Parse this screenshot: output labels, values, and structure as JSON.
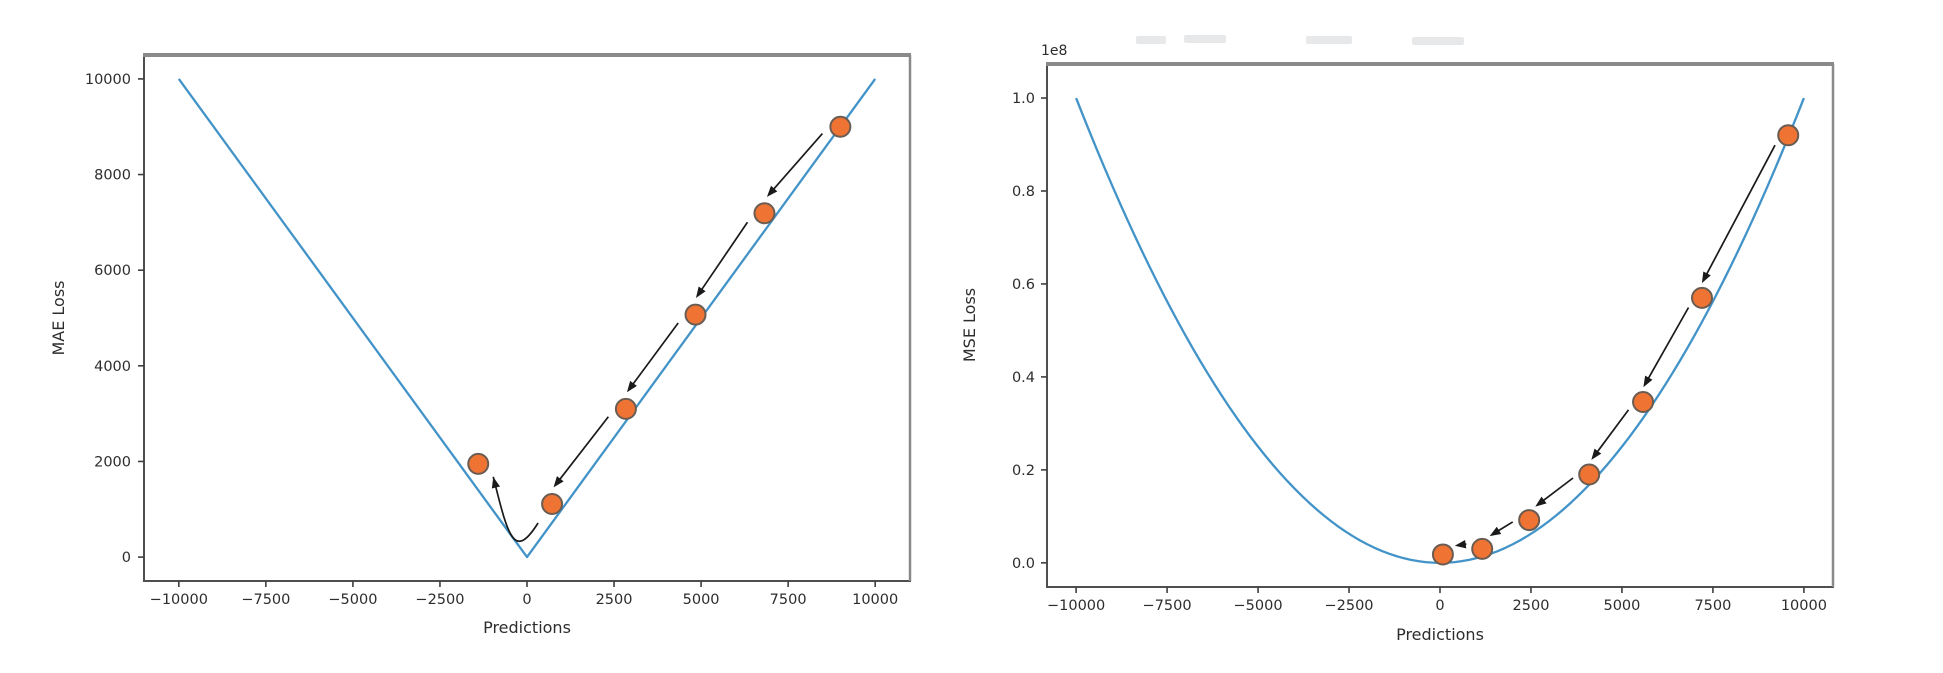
{
  "page": {
    "background": "#ffffff",
    "description": "Two loss-function plots comparing gradient descent trajectories"
  },
  "chart_data": [
    {
      "type": "line",
      "title": "",
      "xlabel": "Predictions",
      "ylabel": "MAE Loss",
      "curve_formula": "y = |x|",
      "curve_kind": "abs",
      "curve_x_range": [
        -10000,
        10000
      ],
      "xlim": [
        -11000,
        11000
      ],
      "ylim": [
        -500,
        10500
      ],
      "x_ticks": [
        -10000,
        -7500,
        -5000,
        -2500,
        0,
        2500,
        5000,
        7500,
        10000
      ],
      "x_tick_labels": [
        "−10000",
        "−7500",
        "−5000",
        "−2500",
        "0",
        "2500",
        "5000",
        "7500",
        "10000"
      ],
      "y_ticks": [
        0,
        2000,
        4000,
        6000,
        8000,
        10000
      ],
      "y_tick_labels": [
        "0",
        "2000",
        "4000",
        "6000",
        "8000",
        "10000"
      ],
      "grid": false,
      "legend": false,
      "colors": {
        "curve": "#4293c8",
        "marker_fill": "#ef7434",
        "marker_edge": "#6a5c52",
        "arrow": "#1a1a1a"
      },
      "gradient_descent_points": [
        [
          9000,
          9000
        ],
        [
          6820,
          7190
        ],
        [
          4840,
          5070
        ],
        [
          2840,
          3100
        ],
        [
          720,
          1110
        ],
        [
          -1400,
          1950
        ]
      ],
      "arrows": [
        {
          "from": 0,
          "to": 1,
          "style": "straight"
        },
        {
          "from": 1,
          "to": 2,
          "style": "straight"
        },
        {
          "from": 2,
          "to": 3,
          "style": "straight"
        },
        {
          "from": 3,
          "to": 4,
          "style": "straight"
        },
        {
          "from": 4,
          "to": 5,
          "style": "curved"
        }
      ]
    },
    {
      "type": "line",
      "title": "",
      "xlabel": "Predictions",
      "ylabel": "MSE Loss",
      "y_offset_label": "1e8",
      "curve_formula": "y = x^2",
      "curve_kind": "square",
      "curve_x_range": [
        -10000,
        10000
      ],
      "xlim": [
        -10800,
        10800
      ],
      "ylim": [
        -5200000,
        107320000
      ],
      "x_ticks": [
        -10000,
        -7500,
        -5000,
        -2500,
        0,
        2500,
        5000,
        7500,
        10000
      ],
      "x_tick_labels": [
        "−10000",
        "−7500",
        "−5000",
        "−2500",
        "0",
        "2500",
        "5000",
        "7500",
        "10000"
      ],
      "y_ticks": [
        0,
        20000000,
        40000000,
        60000000,
        80000000,
        100000000
      ],
      "y_tick_labels": [
        "0.0",
        "0.2",
        "0.4",
        "0.6",
        "0.8",
        "1.0"
      ],
      "grid": false,
      "legend": false,
      "colors": {
        "curve": "#4293c8",
        "marker_fill": "#ef7434",
        "marker_edge": "#6a5c52",
        "arrow": "#1a1a1a"
      },
      "gradient_descent_points": [
        [
          9570,
          92000000
        ],
        [
          7200,
          57000000
        ],
        [
          5580,
          34600000
        ],
        [
          4100,
          19000000
        ],
        [
          2450,
          9200000
        ],
        [
          1160,
          3000000
        ],
        [
          80,
          1800000
        ]
      ],
      "arrows": [
        {
          "from": 0,
          "to": 1,
          "style": "straight"
        },
        {
          "from": 1,
          "to": 2,
          "style": "straight"
        },
        {
          "from": 2,
          "to": 3,
          "style": "straight"
        },
        {
          "from": 3,
          "to": 4,
          "style": "straight"
        },
        {
          "from": 4,
          "to": 5,
          "style": "straight"
        },
        {
          "from": 5,
          "to": 6,
          "style": "straight"
        }
      ]
    }
  ]
}
